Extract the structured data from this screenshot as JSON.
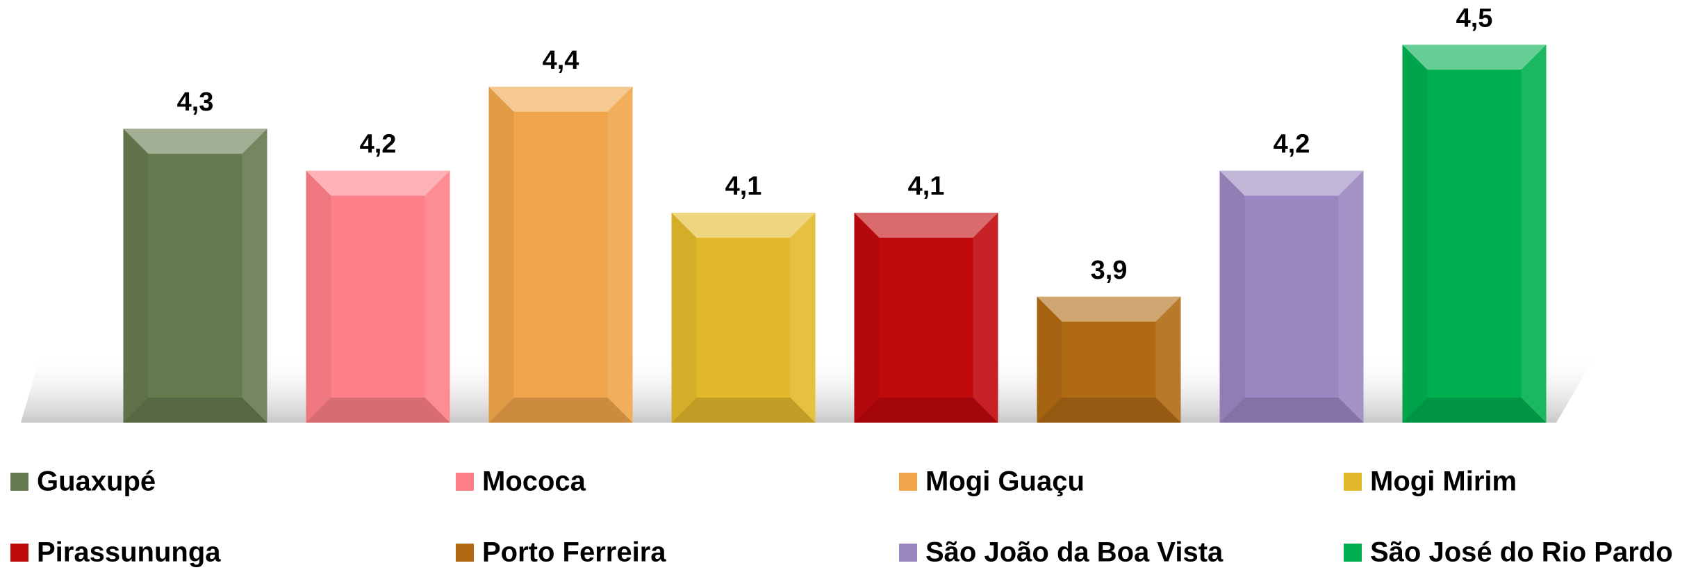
{
  "chart_data": {
    "type": "bar",
    "categories": [
      "Guaxupé",
      "Mococa",
      "Mogi Guaçu",
      "Mogi Mirim",
      "Pirassununga",
      "Porto Ferreira",
      "São João da Boa Vista",
      "São José do Rio Pardo"
    ],
    "values": [
      4.3,
      4.2,
      4.4,
      4.1,
      4.1,
      3.9,
      4.2,
      4.5
    ],
    "value_labels": [
      "4,3",
      "4,2",
      "4,4",
      "4,1",
      "4,1",
      "3,9",
      "4,2",
      "4,5"
    ],
    "colors": [
      "#667a4f",
      "#fd7f88",
      "#f0a54a",
      "#e3b92c",
      "#c0090d",
      "#b06a14",
      "#9a86c0",
      "#00b050"
    ],
    "ylim": [
      3.6,
      4.6
    ],
    "legend": "bottom"
  }
}
